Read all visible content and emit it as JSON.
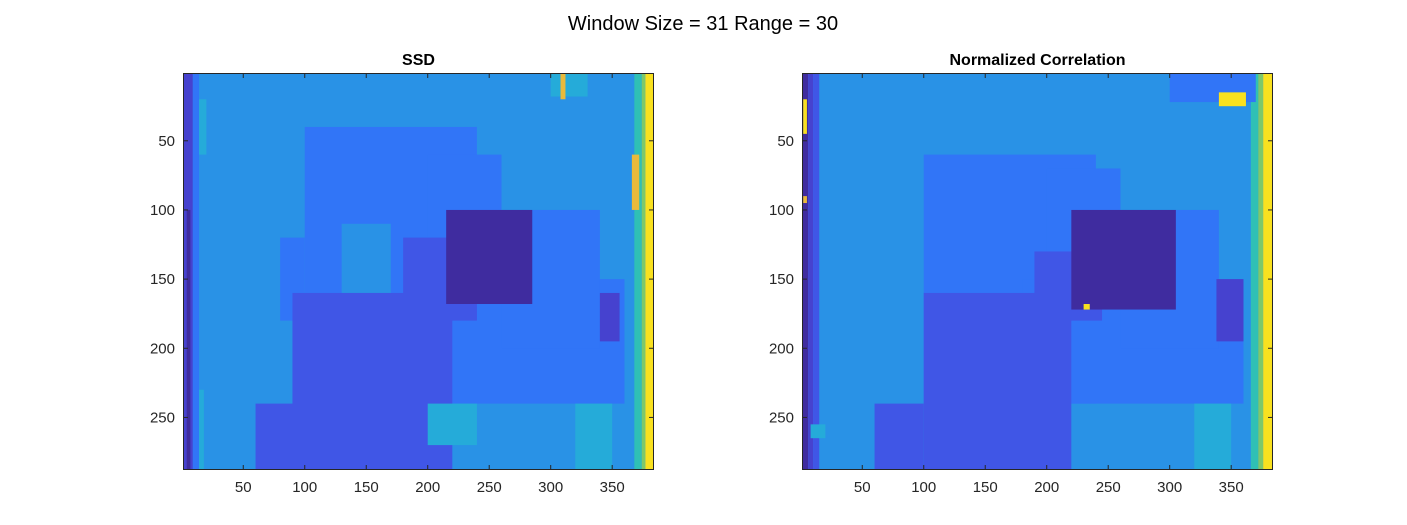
{
  "figure": {
    "suptitle": "Window Size = 31 Range = 30"
  },
  "colors": {
    "c0": "#3f2c9f",
    "c1": "#4642cf",
    "c2": "#4056e6",
    "c3": "#3175f7",
    "c4": "#2992e6",
    "c5": "#25abd9",
    "c6": "#2fc0b5",
    "c7": "#7dc86b",
    "c8": "#e9ba3b",
    "c9": "#f9e11f"
  },
  "chart_data": [
    {
      "type": "heatmap",
      "title": "SSD",
      "colormap": "parula",
      "xlim": [
        1,
        384
      ],
      "ylim": [
        1,
        288
      ],
      "y_direction": "reverse",
      "xticks": [
        50,
        100,
        150,
        200,
        250,
        300,
        350
      ],
      "yticks": [
        50,
        100,
        150,
        200,
        250
      ],
      "background_level": 4,
      "regions": [
        {
          "x": [
            1,
            9
          ],
          "y": [
            1,
            288
          ],
          "level": 1
        },
        {
          "x": [
            4,
            7
          ],
          "y": [
            100,
            288
          ],
          "level": 0
        },
        {
          "x": [
            9,
            14
          ],
          "y": [
            1,
            288
          ],
          "level": 3
        },
        {
          "x": [
            14,
            20
          ],
          "y": [
            20,
            60
          ],
          "level": 5
        },
        {
          "x": [
            14,
            18
          ],
          "y": [
            230,
            288
          ],
          "level": 5
        },
        {
          "x": [
            368,
            374
          ],
          "y": [
            1,
            288
          ],
          "level": 6
        },
        {
          "x": [
            374,
            377
          ],
          "y": [
            1,
            288
          ],
          "level": 7
        },
        {
          "x": [
            377,
            384
          ],
          "y": [
            1,
            288
          ],
          "level": 9
        },
        {
          "x": [
            366,
            372
          ],
          "y": [
            60,
            100
          ],
          "level": 8
        },
        {
          "x": [
            300,
            330
          ],
          "y": [
            1,
            18
          ],
          "level": 5
        },
        {
          "x": [
            308,
            312
          ],
          "y": [
            1,
            20
          ],
          "level": 8
        },
        {
          "x": [
            100,
            240
          ],
          "y": [
            40,
            240
          ],
          "level": 3
        },
        {
          "x": [
            80,
            100
          ],
          "y": [
            120,
            180
          ],
          "level": 3
        },
        {
          "x": [
            200,
            260
          ],
          "y": [
            60,
            140
          ],
          "level": 3
        },
        {
          "x": [
            180,
            360
          ],
          "y": [
            150,
            240
          ],
          "level": 3
        },
        {
          "x": [
            260,
            340
          ],
          "y": [
            100,
            200
          ],
          "level": 3
        },
        {
          "x": [
            130,
            170
          ],
          "y": [
            110,
            170
          ],
          "level": 4
        },
        {
          "x": [
            90,
            220
          ],
          "y": [
            160,
            290
          ],
          "level": 2
        },
        {
          "x": [
            60,
            100
          ],
          "y": [
            240,
            290
          ],
          "level": 2
        },
        {
          "x": [
            180,
            240
          ],
          "y": [
            120,
            180
          ],
          "level": 2
        },
        {
          "x": [
            215,
            285
          ],
          "y": [
            100,
            168
          ],
          "level": 0
        },
        {
          "x": [
            340,
            356
          ],
          "y": [
            160,
            195
          ],
          "level": 1
        },
        {
          "x": [
            320,
            350
          ],
          "y": [
            240,
            290
          ],
          "level": 5
        },
        {
          "x": [
            200,
            240
          ],
          "y": [
            240,
            270
          ],
          "level": 5
        }
      ]
    },
    {
      "type": "heatmap",
      "title": "Normalized Correlation",
      "colormap": "parula",
      "xlim": [
        1,
        384
      ],
      "ylim": [
        1,
        288
      ],
      "y_direction": "reverse",
      "xticks": [
        50,
        100,
        150,
        200,
        250,
        300,
        350
      ],
      "yticks": [
        50,
        100,
        150,
        200,
        250
      ],
      "background_level": 4,
      "regions": [
        {
          "x": [
            1,
            6
          ],
          "y": [
            1,
            288
          ],
          "level": 0
        },
        {
          "x": [
            6,
            10
          ],
          "y": [
            1,
            288
          ],
          "level": 1
        },
        {
          "x": [
            10,
            15
          ],
          "y": [
            1,
            288
          ],
          "level": 2
        },
        {
          "x": [
            2,
            5
          ],
          "y": [
            20,
            45
          ],
          "level": 9
        },
        {
          "x": [
            2,
            5
          ],
          "y": [
            90,
            95
          ],
          "level": 8
        },
        {
          "x": [
            8,
            20
          ],
          "y": [
            255,
            265
          ],
          "level": 5
        },
        {
          "x": [
            366,
            372
          ],
          "y": [
            1,
            288
          ],
          "level": 6
        },
        {
          "x": [
            372,
            376
          ],
          "y": [
            1,
            288
          ],
          "level": 7
        },
        {
          "x": [
            376,
            384
          ],
          "y": [
            1,
            288
          ],
          "level": 9
        },
        {
          "x": [
            300,
            370
          ],
          "y": [
            1,
            22
          ],
          "level": 3
        },
        {
          "x": [
            340,
            362
          ],
          "y": [
            15,
            25
          ],
          "level": 9
        },
        {
          "x": [
            100,
            240
          ],
          "y": [
            60,
            240
          ],
          "level": 3
        },
        {
          "x": [
            200,
            260
          ],
          "y": [
            70,
            140
          ],
          "level": 3
        },
        {
          "x": [
            180,
            360
          ],
          "y": [
            150,
            240
          ],
          "level": 3
        },
        {
          "x": [
            260,
            340
          ],
          "y": [
            100,
            200
          ],
          "level": 3
        },
        {
          "x": [
            100,
            220
          ],
          "y": [
            160,
            290
          ],
          "level": 2
        },
        {
          "x": [
            60,
            100
          ],
          "y": [
            240,
            290
          ],
          "level": 2
        },
        {
          "x": [
            190,
            245
          ],
          "y": [
            130,
            180
          ],
          "level": 2
        },
        {
          "x": [
            220,
            305
          ],
          "y": [
            100,
            172
          ],
          "level": 0
        },
        {
          "x": [
            338,
            360
          ],
          "y": [
            150,
            195
          ],
          "level": 1
        },
        {
          "x": [
            320,
            350
          ],
          "y": [
            240,
            290
          ],
          "level": 5
        },
        {
          "x": [
            230,
            235
          ],
          "y": [
            168,
            172
          ],
          "level": 9
        }
      ]
    }
  ]
}
